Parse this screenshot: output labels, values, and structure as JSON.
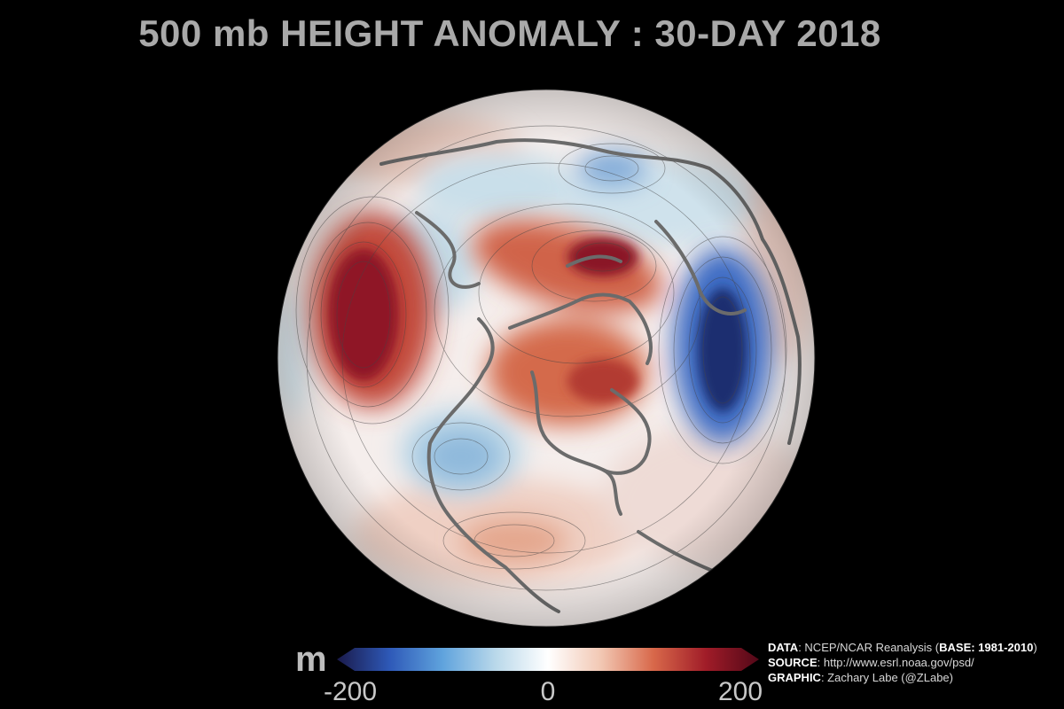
{
  "title": "500 mb HEIGHT ANOMALY : 30-DAY 2018",
  "colorbar": {
    "unit": "m",
    "min_label": "-200",
    "mid_label": "0",
    "max_label": "200",
    "range": [
      -200,
      200
    ],
    "colors": [
      "#1a1a4a",
      "#2e59b8",
      "#5fa3dd",
      "#b9d8ea",
      "#ffffff",
      "#f2c8b4",
      "#d8684a",
      "#a01c28",
      "#520818"
    ]
  },
  "credits": {
    "data_key": "DATA",
    "data_val": ": NCEP/NCAR Reanalysis (",
    "base_key": "BASE: 1981-2010",
    "data_end": ")",
    "source_key": "SOURCE",
    "source_val": ": http://www.esrl.noaa.gov/psd/",
    "graphic_key": "GRAPHIC",
    "graphic_val": ": Zachary Labe (@ZLabe)"
  },
  "map": {
    "projection": "orthographic-north-polar",
    "features": [
      "height-anomaly-field",
      "contour-lines",
      "coastlines"
    ]
  }
}
